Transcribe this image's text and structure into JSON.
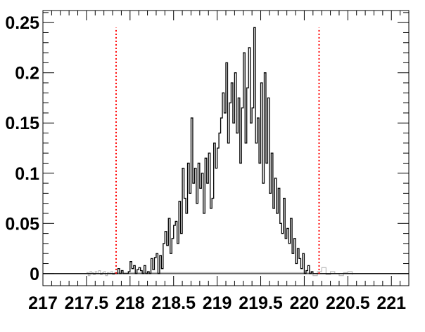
{
  "chart_data": {
    "type": "line",
    "title": "",
    "xlabel": "",
    "ylabel": "",
    "xlim": [
      217,
      221.2
    ],
    "ylim": [
      -0.012,
      0.262
    ],
    "grid": false,
    "legend": "none",
    "x_ticks": [
      217,
      217.5,
      218,
      218.5,
      219,
      219.5,
      220,
      220.5,
      221
    ],
    "x_tick_labels": [
      "217",
      "217.5",
      "218",
      "218.5",
      "219",
      "219.5",
      "220",
      "220.5",
      "221"
    ],
    "y_ticks": [
      0,
      0.05,
      0.1,
      0.15,
      0.2,
      0.25
    ],
    "y_tick_labels": [
      "0",
      "0.05",
      "0.1",
      "0.15",
      "0.2",
      "0.25"
    ],
    "vlines": [
      {
        "x": 217.84,
        "y_top": 0.245,
        "color": "#ff0000",
        "style": "dotted"
      },
      {
        "x": 220.17,
        "y_top": 0.245,
        "color": "#ff0000",
        "style": "dotted"
      }
    ],
    "series": [
      {
        "color": "#000000",
        "x": [
          217.0,
          217.84,
          217.86,
          217.88,
          217.9,
          217.92,
          217.94,
          217.96,
          217.98,
          218.0,
          218.02,
          218.04,
          218.06,
          218.08,
          218.1,
          218.12,
          218.14,
          218.16,
          218.18,
          218.2,
          218.22,
          218.24,
          218.26,
          218.28,
          218.3,
          218.32,
          218.34,
          218.36,
          218.38,
          218.4,
          218.42,
          218.44,
          218.46,
          218.48,
          218.5,
          218.52,
          218.54,
          218.56,
          218.58,
          218.6,
          218.62,
          218.64,
          218.66,
          218.68,
          218.7,
          218.72,
          218.74,
          218.76,
          218.78,
          218.8,
          218.82,
          218.84,
          218.86,
          218.88,
          218.9,
          218.92,
          218.94,
          218.96,
          218.98,
          219.0,
          219.02,
          219.04,
          219.06,
          219.08,
          219.1,
          219.12,
          219.14,
          219.16,
          219.18,
          219.2,
          219.22,
          219.24,
          219.26,
          219.28,
          219.3,
          219.32,
          219.34,
          219.36,
          219.38,
          219.4,
          219.42,
          219.44,
          219.46,
          219.48,
          219.5,
          219.52,
          219.54,
          219.56,
          219.58,
          219.6,
          219.62,
          219.64,
          219.66,
          219.68,
          219.7,
          219.72,
          219.74,
          219.76,
          219.78,
          219.8,
          219.82,
          219.84,
          219.86,
          219.88,
          219.9,
          219.92,
          219.94,
          219.96,
          219.98,
          220.0,
          220.02,
          220.04,
          220.06,
          220.08,
          220.1,
          220.12,
          220.14,
          220.16,
          220.18,
          221.2
        ],
        "y": [
          0,
          0,
          0.005,
          0,
          0.003,
          0,
          0,
          0,
          0.002,
          0.012,
          0.005,
          0.008,
          0,
          0.004,
          0.006,
          0.003,
          0,
          0.008,
          0,
          0.002,
          0,
          0.015,
          0.004,
          0.016,
          0.02,
          0,
          0.018,
          0.005,
          0.03,
          0.042,
          0.028,
          0.055,
          0.02,
          0.035,
          0.048,
          0.052,
          0.03,
          0.072,
          0.04,
          0.105,
          0.075,
          0.06,
          0.11,
          0.08,
          0.155,
          0.09,
          0.105,
          0.07,
          0.11,
          0.085,
          0.1,
          0.06,
          0.115,
          0.09,
          0.12,
          0.065,
          0.075,
          0.13,
          0.105,
          0.125,
          0.14,
          0.155,
          0.18,
          0.16,
          0.21,
          0.13,
          0.17,
          0.19,
          0.15,
          0.2,
          0.14,
          0.175,
          0.11,
          0.165,
          0.22,
          0.13,
          0.185,
          0.225,
          0.15,
          0.165,
          0.245,
          0.13,
          0.155,
          0.11,
          0.19,
          0.09,
          0.2,
          0.11,
          0.175,
          0.08,
          0.12,
          0.065,
          0.095,
          0.06,
          0.085,
          0.05,
          0.04,
          0.075,
          0.035,
          0.045,
          0.03,
          0.055,
          0.02,
          0.035,
          0.01,
          0.025,
          0.015,
          0.005,
          0.02,
          0,
          0.003,
          0.008,
          0,
          0.002,
          0,
          0,
          0,
          0,
          0,
          0
        ]
      },
      {
        "color": "#bbbbbb",
        "x": [
          217.5,
          217.52,
          217.54,
          217.56,
          217.58,
          217.6,
          217.62,
          217.64,
          217.66,
          217.68,
          217.7,
          217.72,
          217.74,
          217.76,
          217.78,
          217.8,
          217.82,
          220.05,
          220.1,
          220.15,
          220.2,
          220.25,
          220.3,
          220.35,
          220.4,
          220.45,
          220.5,
          220.55
        ],
        "y": [
          0.001,
          -0.002,
          0.002,
          0.001,
          -0.001,
          0.002,
          0.0,
          0.003,
          -0.001,
          0.001,
          0.002,
          -0.002,
          0.001,
          0.0,
          0.002,
          -0.001,
          0.001,
          0.001,
          -0.002,
          0.002,
          0.006,
          -0.001,
          0.002,
          0.0,
          -0.002,
          0.001,
          0.002,
          -0.001
        ]
      }
    ]
  }
}
